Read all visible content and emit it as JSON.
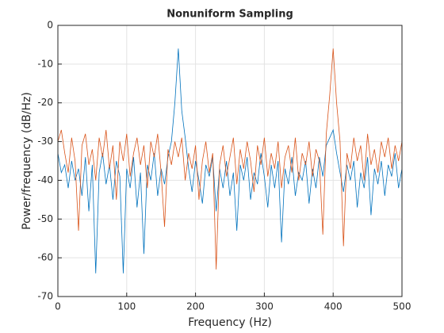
{
  "chart_data": {
    "type": "line",
    "title": "Nonuniform Sampling",
    "xlabel": "Frequency (Hz)",
    "ylabel": "Power/frequency (dB/Hz)",
    "x": [
      0,
      5,
      10,
      15,
      20,
      25,
      30,
      35,
      40,
      45,
      50,
      55,
      60,
      65,
      70,
      75,
      80,
      85,
      90,
      95,
      100,
      105,
      110,
      115,
      120,
      125,
      130,
      135,
      140,
      145,
      150,
      155,
      160,
      165,
      170,
      175,
      180,
      185,
      190,
      195,
      200,
      205,
      210,
      215,
      220,
      225,
      230,
      235,
      240,
      245,
      250,
      255,
      260,
      265,
      270,
      275,
      280,
      285,
      290,
      295,
      300,
      305,
      310,
      315,
      320,
      325,
      330,
      335,
      340,
      345,
      350,
      355,
      360,
      365,
      370,
      375,
      380,
      385,
      390,
      395,
      400,
      405,
      410,
      415,
      420,
      425,
      430,
      435,
      440,
      445,
      450,
      455,
      460,
      465,
      470,
      475,
      480,
      485,
      490,
      495,
      500
    ],
    "series": [
      {
        "color": "#0072BD",
        "values": [
          -33,
          -38,
          -36,
          -42,
          -35,
          -40,
          -37,
          -44,
          -34,
          -48,
          -36,
          -64,
          -38,
          -33,
          -41,
          -36,
          -45,
          -35,
          -39,
          -64,
          -37,
          -42,
          -34,
          -47,
          -38,
          -59,
          -36,
          -40,
          -33,
          -44,
          -37,
          -41,
          -34,
          -30,
          -20,
          -6,
          -22,
          -29,
          -37,
          -43,
          -35,
          -40,
          -46,
          -36,
          -39,
          -34,
          -48,
          -37,
          -42,
          -35,
          -44,
          -38,
          -53,
          -36,
          -40,
          -34,
          -45,
          -38,
          -41,
          -33,
          -39,
          -47,
          -36,
          -42,
          -35,
          -56,
          -37,
          -41,
          -34,
          -44,
          -38,
          -40,
          -35,
          -46,
          -37,
          -42,
          -34,
          -39,
          -31,
          -29,
          -27,
          -33,
          -38,
          -43,
          -36,
          -40,
          -35,
          -47,
          -38,
          -42,
          -34,
          -49,
          -37,
          -41,
          -35,
          -44,
          -36,
          -39,
          -33,
          -42,
          -37
        ]
      },
      {
        "color": "#D95319",
        "values": [
          -30,
          -27,
          -33,
          -38,
          -29,
          -35,
          -53,
          -31,
          -28,
          -36,
          -32,
          -40,
          -29,
          -34,
          -27,
          -37,
          -31,
          -45,
          -30,
          -35,
          -28,
          -39,
          -33,
          -29,
          -36,
          -31,
          -42,
          -30,
          -34,
          -28,
          -38,
          -52,
          -32,
          -36,
          -30,
          -34,
          -29,
          -40,
          -33,
          -37,
          -31,
          -45,
          -35,
          -30,
          -38,
          -33,
          -63,
          -36,
          -31,
          -39,
          -34,
          -29,
          -41,
          -32,
          -37,
          -30,
          -35,
          -43,
          -31,
          -36,
          -29,
          -39,
          -33,
          -37,
          -30,
          -42,
          -34,
          -31,
          -38,
          -29,
          -40,
          -33,
          -36,
          -30,
          -39,
          -32,
          -35,
          -54,
          -28,
          -18,
          -6,
          -20,
          -30,
          -57,
          -33,
          -37,
          -29,
          -35,
          -31,
          -40,
          -28,
          -36,
          -32,
          -38,
          -30,
          -34,
          -29,
          -37,
          -31,
          -35,
          -30
        ]
      }
    ],
    "xlim": [
      0,
      500
    ],
    "xticks": [
      0,
      100,
      200,
      300,
      400,
      500
    ],
    "ylim": [
      -70,
      0
    ],
    "yticks": [
      -70,
      -60,
      -50,
      -40,
      -30,
      -20,
      -10,
      0
    ],
    "grid": true
  }
}
